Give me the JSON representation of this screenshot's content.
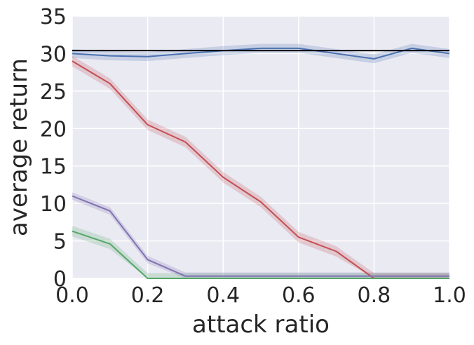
{
  "chart_data": {
    "type": "line",
    "title": "",
    "xlabel": "attack ratio",
    "ylabel": "average return",
    "xlim": [
      0.0,
      1.0
    ],
    "ylim": [
      0,
      35
    ],
    "x_ticks": [
      "0.0",
      "0.2",
      "0.4",
      "0.6",
      "0.8",
      "1.0"
    ],
    "y_ticks": [
      "0",
      "5",
      "10",
      "15",
      "20",
      "25",
      "30",
      "35"
    ],
    "grid": true,
    "background_color": "#eaeaf2",
    "grid_color": "#ffffff",
    "x": [
      0.0,
      0.1,
      0.2,
      0.3,
      0.4,
      0.5,
      0.6,
      0.7,
      0.8,
      0.9,
      1.0
    ],
    "reference_line": {
      "y": 30.4,
      "color": "#000000"
    },
    "series": [
      {
        "color": "#4c72b0",
        "values": [
          30.0,
          29.7,
          29.6,
          30.0,
          30.4,
          30.7,
          30.7,
          30.0,
          29.3,
          30.7,
          30.0
        ],
        "band": 0.6
      },
      {
        "color": "#c44e52",
        "values": [
          29.0,
          26.0,
          20.5,
          18.2,
          13.5,
          10.2,
          5.5,
          3.6,
          0.0,
          0.0,
          0.0
        ],
        "band": 0.7
      },
      {
        "color": "#8172b2",
        "values": [
          11.0,
          9.0,
          2.5,
          0.3,
          0.3,
          0.3,
          0.3,
          0.3,
          0.3,
          0.3,
          0.3
        ],
        "band": 0.5
      },
      {
        "color": "#55a868",
        "values": [
          6.3,
          4.6,
          0.0,
          0.0,
          0.0,
          0.0,
          0.0,
          0.0,
          0.0,
          0.0,
          0.0
        ],
        "band": 0.7
      }
    ]
  }
}
